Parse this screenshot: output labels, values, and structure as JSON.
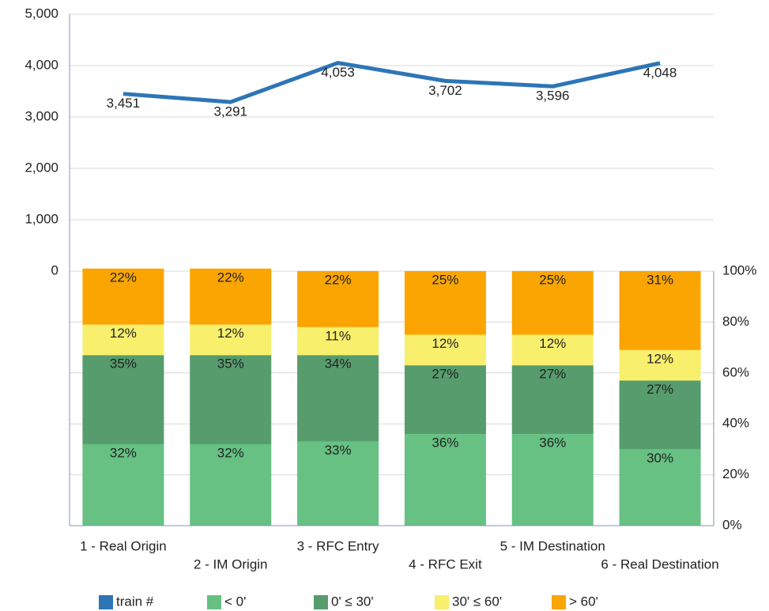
{
  "chart_data": {
    "type": "combo",
    "categories": [
      "1 - Real Origin",
      "2 - IM Origin",
      "3 - RFC Entry",
      "4 - RFC Exit",
      "5 - IM Destination",
      "6 - Real Destination"
    ],
    "ylim": [
      0,
      5000
    ],
    "yticks": [
      0,
      {
        "value": 1000,
        "label": "1,000"
      },
      {
        "value": 2000,
        "label": "2,000"
      },
      {
        "value": 3000,
        "label": "3,000"
      },
      {
        "value": 4000,
        "label": "4,000"
      },
      {
        "value": 5000,
        "label": "5,000"
      }
    ],
    "y2lim": [
      0,
      100
    ],
    "y2ticks": [
      {
        "value": 0,
        "label": "0%"
      },
      {
        "value": 20,
        "label": "20%"
      },
      {
        "value": 40,
        "label": "40%"
      },
      {
        "value": 60,
        "label": "60%"
      },
      {
        "value": 80,
        "label": "80%"
      },
      {
        "value": 100,
        "label": "100%"
      }
    ],
    "grid": true,
    "legend": "bottom",
    "series": [
      {
        "name": "train #",
        "type": "line",
        "axis": "y",
        "color": "#2e75b6",
        "values": [
          3451,
          3291,
          4053,
          3702,
          3596,
          4048
        ],
        "value_labels": [
          "3,451",
          "3,291",
          "4,053",
          "3,702",
          "3,596",
          "4,048"
        ]
      },
      {
        "name": "< 0'",
        "type": "bar",
        "axis": "y2",
        "color": "#66c183",
        "values": [
          32,
          32,
          33,
          36,
          36,
          30
        ],
        "value_labels": [
          "32%",
          "32%",
          "33%",
          "36%",
          "36%",
          "30%"
        ]
      },
      {
        "name": "0' ≤ 30'",
        "type": "bar",
        "axis": "y2",
        "color": "#579c6c",
        "values": [
          35,
          35,
          34,
          27,
          27,
          27
        ],
        "value_labels": [
          "35%",
          "35%",
          "34%",
          "27%",
          "27%",
          "27%"
        ]
      },
      {
        "name": "30' ≤ 60'",
        "type": "bar",
        "axis": "y2",
        "color": "#f8ef6c",
        "values": [
          12,
          12,
          11,
          12,
          12,
          12
        ],
        "value_labels": [
          "12%",
          "12%",
          "11%",
          "12%",
          "12%",
          "12%"
        ]
      },
      {
        "name": "> 60'",
        "type": "bar",
        "axis": "y2",
        "color": "#fba502",
        "values": [
          22,
          22,
          22,
          25,
          25,
          31
        ],
        "value_labels": [
          "22%",
          "22%",
          "22%",
          "25%",
          "25%",
          "31%"
        ]
      }
    ]
  }
}
